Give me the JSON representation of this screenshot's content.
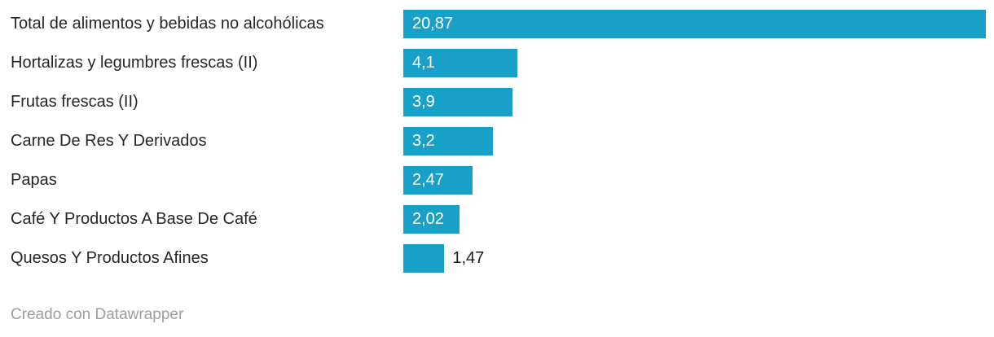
{
  "chart_data": {
    "type": "bar",
    "orientation": "horizontal",
    "categories": [
      "Total de alimentos y bebidas no alcohólicas",
      "Hortalizas y legumbres frescas (II)",
      "Frutas frescas (II)",
      "Carne De Res Y Derivados",
      "Papas",
      "Café Y Productos A Base De Café",
      "Quesos Y Productos Afines"
    ],
    "values": [
      20.87,
      4.1,
      3.9,
      3.2,
      2.47,
      2.02,
      1.47
    ],
    "value_labels": [
      "20,87",
      "4,1",
      "3,9",
      "3,2",
      "2,47",
      "2,02",
      "1,47"
    ],
    "xlim": [
      0,
      20.87
    ],
    "grid": false,
    "legend": false,
    "bar_color": "#17a1c9",
    "category_label_color": "#262626",
    "value_label_color_inside": "#ffffff",
    "value_label_color_outside": "#1d1d1d"
  },
  "footer": {
    "credit": "Creado con Datawrapper",
    "credit_color": "#9e9e9e"
  }
}
